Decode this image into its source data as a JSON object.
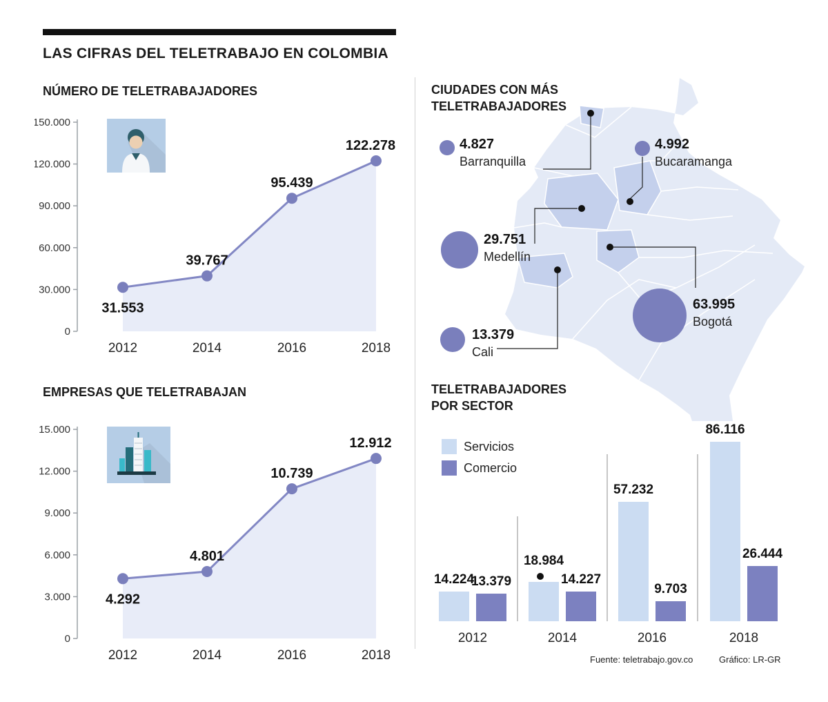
{
  "header": {
    "title": "LAS CIFRAS DEL TELETRABAJO EN COLOMBIA"
  },
  "footer": {
    "source": "Fuente: teletrabajo.gov.co",
    "credit": "Gráfico: LR-GR"
  },
  "colors": {
    "line": "#8287c4",
    "marker": "#7a7fbc",
    "area": "#e8ecf8",
    "servicios": "#cbdcf2",
    "comercio": "#7c81c0",
    "bubble": "#7a7fbc",
    "map_base": "#e4eaf6",
    "map_highlight": "#c4d0ec",
    "icon_bg": "#b5cde6"
  },
  "chart_data": [
    {
      "id": "workers",
      "type": "line",
      "title": "NÚMERO DE TELETRABAJADORES",
      "categories": [
        "2012",
        "2014",
        "2016",
        "2018"
      ],
      "values": [
        31553,
        39767,
        95439,
        122278
      ],
      "value_labels": [
        "31.553",
        "39.767",
        "95.439",
        "122.278"
      ],
      "ylim": [
        0,
        150000
      ],
      "ytick_labels": [
        "0",
        "30.000",
        "60.000",
        "90.000",
        "120.000",
        "150.000"
      ],
      "icon": "worker-icon",
      "grid": "off",
      "area_fill": true
    },
    {
      "id": "companies",
      "type": "line",
      "title": "EMPRESAS QUE TELETRABAJAN",
      "categories": [
        "2012",
        "2014",
        "2016",
        "2018"
      ],
      "values": [
        4292,
        4801,
        10739,
        12912
      ],
      "value_labels": [
        "4.292",
        "4.801",
        "10.739",
        "12.912"
      ],
      "ylim": [
        0,
        15000
      ],
      "ytick_labels": [
        "0",
        "3.000",
        "6.000",
        "9.000",
        "12.000",
        "15.000"
      ],
      "icon": "office-buildings-icon",
      "grid": "off",
      "area_fill": true
    },
    {
      "id": "cities",
      "type": "bubble-map",
      "title": "CIUDADES CON MÁS TELETRABAJADORES",
      "cities": [
        {
          "name": "Barranquilla",
          "value": 4827,
          "label": "4.827"
        },
        {
          "name": "Bucaramanga",
          "value": 4992,
          "label": "4.992"
        },
        {
          "name": "Medellín",
          "value": 29751,
          "label": "29.751"
        },
        {
          "name": "Cali",
          "value": 13379,
          "label": "13.379"
        },
        {
          "name": "Bogotá",
          "value": 63995,
          "label": "63.995"
        }
      ]
    },
    {
      "id": "sector",
      "type": "bar",
      "title": "TELETRABAJADORES POR SECTOR",
      "categories": [
        "2012",
        "2014",
        "2016",
        "2018"
      ],
      "series": [
        {
          "name": "Servicios",
          "values": [
            14224,
            18984,
            57232,
            86116
          ],
          "value_labels": [
            "14.224",
            "18.984",
            "57.232",
            "86.116"
          ]
        },
        {
          "name": "Comercio",
          "values": [
            13379,
            14227,
            9703,
            26444
          ],
          "value_labels": [
            "13.379",
            "14.227",
            "9.703",
            "26.444"
          ]
        }
      ],
      "legend_position": "top-left",
      "grid": "off"
    }
  ]
}
